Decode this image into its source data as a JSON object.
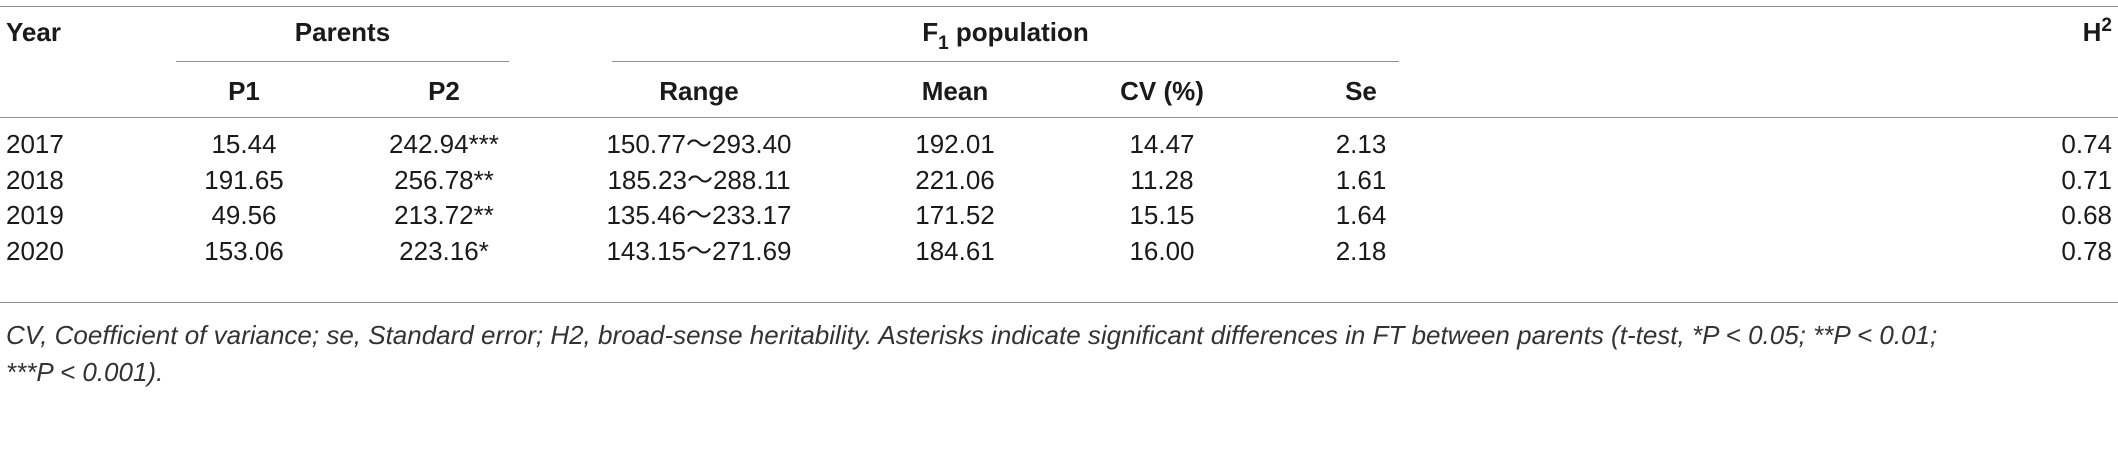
{
  "table": {
    "headers": {
      "year": "Year",
      "parents": "Parents",
      "f1_prefix": "F",
      "f1_sub": "1",
      "f1_suffix": " population",
      "h2_base": "H",
      "h2_sup": "2",
      "p1": "P1",
      "p2": "P2",
      "range": "Range",
      "mean": "Mean",
      "cv": "CV (%)",
      "se": "Se"
    },
    "rows": [
      {
        "year": "2017",
        "p1": "15.44",
        "p2": "242.94***",
        "range": "150.77～293.40",
        "mean": "192.01",
        "cv": "14.47",
        "se": "2.13",
        "h2": "0.74"
      },
      {
        "year": "2018",
        "p1": "191.65",
        "p2": "256.78**",
        "range": "185.23～288.11",
        "mean": "221.06",
        "cv": "11.28",
        "se": "1.61",
        "h2": "0.71"
      },
      {
        "year": "2019",
        "p1": "49.56",
        "p2": "213.72**",
        "range": "135.46～233.17",
        "mean": "171.52",
        "cv": "15.15",
        "se": "1.64",
        "h2": "0.68"
      },
      {
        "year": "2020",
        "p1": "153.06",
        "p2": "223.16*",
        "range": "143.15～271.69",
        "mean": "184.61",
        "cv": "16.00",
        "se": "2.18",
        "h2": "0.78"
      }
    ]
  },
  "footnote": {
    "line1": "CV, Coefficient of variance; se, Standard error; H2, broad-sense heritability. Asterisks indicate significant differences in FT between parents (t-test, *P < 0.05; **P < 0.01;",
    "line2": "***P < 0.001)."
  }
}
